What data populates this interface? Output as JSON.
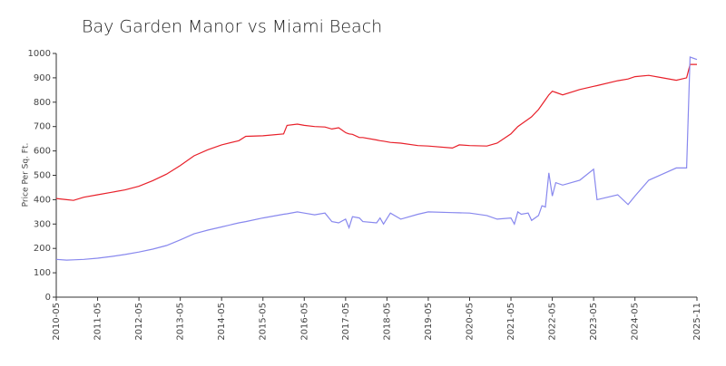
{
  "chart_data": {
    "type": "line",
    "title": "Bay Garden Manor vs Miami Beach",
    "y_label": "Price Per Sq. Ft.",
    "x": [
      "2010-05",
      "2010-08",
      "2010-10",
      "2011-01",
      "2011-05",
      "2011-09",
      "2012-01",
      "2012-05",
      "2012-09",
      "2013-01",
      "2013-05",
      "2013-09",
      "2014-01",
      "2014-05",
      "2014-10",
      "2014-12",
      "2015-05",
      "2015-11",
      "2015-12",
      "2016-03",
      "2016-05",
      "2016-08",
      "2016-11",
      "2017-01",
      "2017-03",
      "2017-05",
      "2017-06",
      "2017-07",
      "2017-09",
      "2017-10",
      "2018-02",
      "2018-03",
      "2018-04",
      "2018-06",
      "2018-09",
      "2019-02",
      "2019-05",
      "2019-12",
      "2020-02",
      "2020-05",
      "2020-10",
      "2021-01",
      "2021-05",
      "2021-06",
      "2021-07",
      "2021-08",
      "2021-10",
      "2021-11",
      "2022-01",
      "2022-02",
      "2022-03",
      "2022-04",
      "2022-05",
      "2022-06",
      "2022-08",
      "2023-01",
      "2023-05",
      "2023-06",
      "2023-12",
      "2024-03",
      "2024-05",
      "2024-09",
      "2025-01",
      "2025-05",
      "2025-08",
      "2025-09",
      "2025-11"
    ],
    "series": [
      {
        "color": "#e8202a",
        "values": [
          405,
          400,
          397,
          410,
          420,
          430,
          440,
          455,
          478,
          505,
          540,
          580,
          605,
          625,
          642,
          660,
          662,
          670,
          705,
          710,
          705,
          700,
          698,
          690,
          695,
          675,
          670,
          668,
          655,
          655,
          645,
          642,
          640,
          635,
          632,
          622,
          620,
          612,
          625,
          622,
          620,
          632,
          670,
          685,
          700,
          710,
          730,
          740,
          770,
          790,
          810,
          830,
          845,
          840,
          830,
          852,
          865,
          868,
          888,
          895,
          905,
          910,
          900,
          890,
          900,
          955,
          955
        ]
      },
      {
        "color": "#8888ee",
        "values": [
          155,
          152,
          153,
          155,
          160,
          167,
          175,
          185,
          197,
          212,
          235,
          260,
          275,
          288,
          305,
          310,
          325,
          340,
          342,
          350,
          345,
          338,
          345,
          310,
          305,
          320,
          285,
          330,
          325,
          310,
          305,
          325,
          300,
          345,
          320,
          340,
          350,
          347,
          346,
          345,
          335,
          320,
          325,
          300,
          350,
          340,
          345,
          315,
          335,
          375,
          370,
          510,
          415,
          470,
          460,
          480,
          525,
          400,
          420,
          380,
          415,
          480,
          505,
          530,
          530,
          985,
          975
        ]
      }
    ],
    "xlim": [
      "2010-05",
      "2025-11"
    ],
    "xticks": [
      "2010-05",
      "2011-05",
      "2012-05",
      "2013-05",
      "2014-05",
      "2015-05",
      "2016-05",
      "2017-05",
      "2018-05",
      "2019-05",
      "2020-05",
      "2021-05",
      "2022-05",
      "2023-05",
      "2024-05",
      "2025-11"
    ],
    "ylim": [
      0,
      1000
    ],
    "yticks": [
      0,
      100,
      200,
      300,
      400,
      500,
      600,
      700,
      800,
      900,
      1000
    ]
  }
}
